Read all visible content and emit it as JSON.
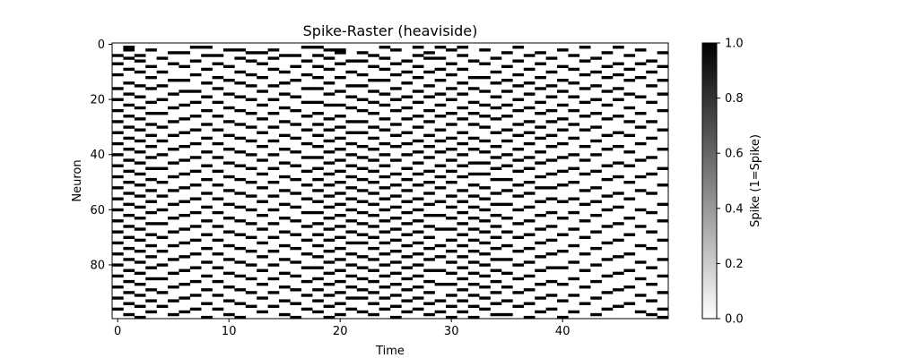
{
  "chart_data": {
    "type": "heatmap",
    "title": "Spike-Raster (heaviside)",
    "xlabel": "Time",
    "ylabel": "Neuron",
    "xlim": [
      -0.5,
      49.5
    ],
    "ylim": [
      99.5,
      -0.5
    ],
    "x_ticks": [
      0,
      10,
      20,
      30,
      40
    ],
    "y_ticks": [
      0,
      20,
      40,
      60,
      80
    ],
    "n_neurons": 100,
    "n_time": 50,
    "colormap": "gray_r",
    "colorbar": {
      "label": "Spike (1=Spike)",
      "range": [
        0,
        1
      ],
      "ticks": [
        "0.0",
        "0.2",
        "0.4",
        "0.6",
        "0.8",
        "1.0"
      ]
    },
    "spike_rows": [
      [],
      [
        1,
        7,
        8,
        17,
        18,
        24,
        27,
        29,
        31,
        36,
        42,
        45
      ],
      [
        1,
        3,
        10,
        11,
        14,
        19,
        20,
        25,
        30,
        33,
        40,
        47
      ],
      [
        5,
        6,
        12,
        13,
        20,
        22,
        28,
        35,
        38,
        44,
        49
      ],
      [
        0,
        2,
        8,
        9,
        15,
        16,
        18,
        23,
        27,
        31,
        37,
        41,
        46
      ],
      [
        1,
        4,
        11,
        14,
        19,
        24,
        28,
        29,
        34,
        39,
        43
      ],
      [
        2,
        7,
        12,
        17,
        21,
        22,
        26,
        32,
        36,
        42,
        48
      ],
      [
        0,
        5,
        9,
        13,
        20,
        25,
        30,
        33,
        38,
        45,
        47
      ],
      [
        3,
        6,
        10,
        16,
        18,
        23,
        27,
        35,
        40,
        44,
        49
      ],
      [
        1,
        8,
        14,
        19,
        24,
        29,
        31,
        37,
        41,
        46
      ],
      [
        2,
        4,
        11,
        15,
        21,
        26,
        28,
        34,
        39,
        43,
        48
      ],
      [
        0,
        7,
        12,
        17,
        22,
        25,
        30,
        36,
        42,
        45
      ],
      [
        3,
        9,
        13,
        18,
        20,
        27,
        32,
        33,
        38,
        44,
        47
      ],
      [
        5,
        6,
        10,
        16,
        23,
        24,
        29,
        35,
        40,
        46,
        49
      ],
      [
        1,
        8,
        11,
        15,
        19,
        26,
        31,
        34,
        37,
        41
      ],
      [
        2,
        4,
        12,
        14,
        21,
        22,
        28,
        36,
        39,
        43,
        48
      ],
      [
        0,
        3,
        9,
        17,
        18,
        25,
        30,
        32,
        38,
        42,
        45
      ],
      [
        6,
        7,
        13,
        20,
        23,
        27,
        33,
        35,
        40,
        44
      ],
      [
        1,
        5,
        10,
        15,
        19,
        24,
        29,
        31,
        37,
        46,
        49
      ],
      [
        2,
        8,
        11,
        16,
        21,
        26,
        28,
        34,
        39,
        41,
        47
      ],
      [
        0,
        4,
        12,
        14,
        22,
        25,
        30,
        36,
        43,
        45
      ],
      [
        3,
        7,
        9,
        17,
        18,
        23,
        27,
        32,
        38,
        42,
        48
      ],
      [
        1,
        6,
        13,
        19,
        20,
        24,
        29,
        33,
        35,
        40,
        44
      ],
      [
        2,
        5,
        10,
        15,
        21,
        26,
        31,
        34,
        37,
        46
      ],
      [
        0,
        8,
        11,
        16,
        22,
        25,
        28,
        36,
        39,
        41,
        49
      ],
      [
        3,
        4,
        12,
        14,
        18,
        23,
        30,
        32,
        38,
        43,
        47
      ],
      [
        1,
        7,
        9,
        17,
        20,
        27,
        29,
        33,
        35,
        42,
        45
      ],
      [
        2,
        6,
        13,
        19,
        24,
        26,
        31,
        34,
        40,
        44
      ],
      [
        0,
        5,
        10,
        15,
        21,
        22,
        28,
        37,
        39,
        46,
        48
      ],
      [
        3,
        8,
        11,
        16,
        18,
        25,
        30,
        32,
        36,
        41
      ],
      [
        1,
        4,
        12,
        14,
        20,
        23,
        27,
        33,
        38,
        43,
        47
      ],
      [
        2,
        7,
        9,
        17,
        19,
        24,
        29,
        35,
        40,
        42,
        49
      ],
      [
        0,
        6,
        13,
        21,
        22,
        26,
        31,
        34,
        37,
        45
      ],
      [
        3,
        5,
        10,
        15,
        18,
        25,
        28,
        36,
        39,
        44,
        46
      ],
      [
        1,
        8,
        11,
        16,
        20,
        23,
        30,
        32,
        38,
        41,
        48
      ],
      [
        2,
        4,
        12,
        14,
        19,
        27,
        29,
        33,
        35,
        43
      ],
      [
        0,
        7,
        9,
        17,
        21,
        24,
        26,
        31,
        37,
        40,
        47
      ],
      [
        3,
        6,
        13,
        18,
        22,
        25,
        28,
        34,
        39,
        42,
        45
      ],
      [
        1,
        5,
        10,
        15,
        20,
        23,
        30,
        32,
        36,
        44,
        49
      ],
      [
        2,
        8,
        11,
        16,
        19,
        27,
        29,
        33,
        38,
        46
      ],
      [
        0,
        4,
        12,
        14,
        21,
        24,
        26,
        31,
        35,
        41,
        43
      ],
      [
        3,
        7,
        9,
        17,
        18,
        22,
        28,
        34,
        37,
        40,
        48
      ],
      [
        1,
        6,
        13,
        20,
        23,
        25,
        30,
        36,
        39,
        42,
        47
      ],
      [
        2,
        5,
        10,
        15,
        19,
        27,
        32,
        33,
        38,
        45
      ],
      [
        0,
        8,
        11,
        16,
        21,
        24,
        29,
        31,
        35,
        44,
        46
      ],
      [
        3,
        4,
        12,
        14,
        18,
        22,
        26,
        34,
        37,
        41,
        49
      ],
      [
        1,
        7,
        9,
        17,
        20,
        23,
        28,
        30,
        36,
        40,
        43
      ],
      [
        2,
        6,
        13,
        19,
        25,
        27,
        32,
        33,
        39,
        42,
        48
      ],
      [
        0,
        5,
        10,
        15,
        21,
        24,
        29,
        31,
        38,
        45,
        47
      ],
      [
        3,
        8,
        11,
        16,
        18,
        22,
        26,
        34,
        35,
        44
      ],
      [
        1,
        4,
        12,
        14,
        20,
        23,
        28,
        30,
        37,
        41,
        46
      ],
      [
        2,
        7,
        9,
        17,
        19,
        25,
        27,
        32,
        36,
        40,
        49
      ],
      [
        0,
        6,
        13,
        21,
        24,
        29,
        33,
        38,
        39,
        43
      ],
      [
        3,
        5,
        10,
        15,
        18,
        22,
        26,
        31,
        35,
        42,
        47
      ],
      [
        1,
        8,
        11,
        16,
        20,
        23,
        28,
        34,
        37,
        45,
        48
      ],
      [
        2,
        4,
        12,
        14,
        19,
        25,
        30,
        32,
        36,
        44
      ],
      [
        0,
        7,
        9,
        17,
        21,
        24,
        27,
        33,
        39,
        41,
        46
      ],
      [
        3,
        6,
        13,
        18,
        22,
        26,
        29,
        31,
        38,
        40,
        43
      ],
      [
        1,
        5,
        10,
        15,
        20,
        23,
        28,
        34,
        35,
        42,
        49
      ],
      [
        2,
        8,
        11,
        16,
        19,
        25,
        30,
        32,
        37,
        45
      ],
      [
        0,
        4,
        12,
        14,
        21,
        24,
        27,
        33,
        36,
        44,
        47
      ],
      [
        3,
        7,
        9,
        17,
        18,
        22,
        26,
        31,
        39,
        41,
        48
      ],
      [
        1,
        6,
        13,
        20,
        23,
        28,
        29,
        34,
        38,
        43
      ],
      [
        2,
        5,
        10,
        15,
        19,
        25,
        30,
        32,
        35,
        40,
        46
      ],
      [
        0,
        8,
        11,
        16,
        21,
        24,
        27,
        33,
        37,
        42,
        49
      ],
      [
        3,
        4,
        12,
        14,
        18,
        22,
        26,
        31,
        36,
        45
      ],
      [
        1,
        7,
        9,
        17,
        20,
        23,
        28,
        34,
        39,
        44,
        47
      ],
      [
        2,
        6,
        13,
        19,
        25,
        29,
        30,
        32,
        38,
        41
      ],
      [
        0,
        5,
        10,
        15,
        21,
        24,
        27,
        33,
        35,
        43,
        48
      ],
      [
        3,
        8,
        11,
        16,
        18,
        22,
        26,
        31,
        37,
        40,
        46
      ],
      [
        1,
        4,
        12,
        14,
        20,
        23,
        28,
        34,
        36,
        42
      ],
      [
        2,
        7,
        9,
        17,
        19,
        25,
        30,
        32,
        39,
        45,
        49
      ],
      [
        0,
        6,
        13,
        21,
        22,
        24,
        27,
        33,
        38,
        44
      ],
      [
        3,
        5,
        10,
        15,
        18,
        26,
        29,
        31,
        35,
        41,
        47
      ],
      [
        1,
        8,
        11,
        16,
        20,
        23,
        28,
        34,
        37,
        43,
        48
      ],
      [
        2,
        4,
        12,
        14,
        19,
        25,
        30,
        32,
        36,
        40
      ],
      [
        0,
        7,
        9,
        17,
        21,
        24,
        27,
        33,
        39,
        42,
        46
      ],
      [
        3,
        6,
        13,
        18,
        22,
        26,
        29,
        31,
        38,
        45
      ],
      [
        1,
        5,
        10,
        15,
        20,
        23,
        28,
        34,
        35,
        44,
        49
      ],
      [
        2,
        8,
        11,
        16,
        19,
        25,
        30,
        32,
        37,
        41,
        47
      ],
      [
        0,
        4,
        12,
        14,
        21,
        24,
        27,
        33,
        36,
        43
      ],
      [
        3,
        7,
        9,
        17,
        18,
        22,
        26,
        31,
        39,
        40,
        48
      ],
      [
        1,
        6,
        13,
        20,
        23,
        28,
        29,
        34,
        38,
        42,
        46
      ],
      [
        2,
        5,
        10,
        15,
        19,
        25,
        30,
        32,
        35,
        45
      ],
      [
        0,
        8,
        11,
        16,
        21,
        24,
        27,
        33,
        37,
        44,
        49
      ],
      [
        3,
        4,
        12,
        14,
        18,
        22,
        26,
        31,
        36,
        41,
        47
      ],
      [
        1,
        7,
        9,
        17,
        20,
        23,
        28,
        34,
        39,
        43
      ],
      [
        2,
        6,
        13,
        19,
        25,
        29,
        30,
        32,
        38,
        40,
        48
      ],
      [
        0,
        5,
        10,
        15,
        21,
        24,
        27,
        33,
        35,
        42,
        46
      ],
      [
        3,
        8,
        11,
        16,
        18,
        22,
        26,
        31,
        37,
        45
      ],
      [
        1,
        4,
        12,
        14,
        20,
        23,
        28,
        34,
        36,
        44,
        49
      ],
      [
        2,
        7,
        9,
        17,
        19,
        25,
        30,
        32,
        39,
        41,
        47
      ],
      [
        0,
        6,
        13,
        21,
        22,
        24,
        27,
        33,
        38,
        43
      ],
      [
        3,
        5,
        10,
        15,
        18,
        26,
        29,
        31,
        35,
        40,
        48
      ],
      [
        1,
        8,
        11,
        16,
        20,
        23,
        28,
        34,
        37,
        42,
        46
      ],
      [
        2,
        4,
        12,
        14,
        19,
        25,
        30,
        32,
        36,
        45
      ],
      [
        0,
        7,
        9,
        17,
        21,
        24,
        27,
        33,
        39,
        44,
        49
      ],
      [
        3,
        6,
        13,
        18,
        22,
        26,
        29,
        31,
        38,
        41,
        47
      ],
      [
        1,
        5,
        10,
        15,
        20,
        23,
        28,
        34,
        35,
        43,
        48
      ],
      [
        2,
        8,
        11,
        16,
        19,
        25,
        30,
        32,
        37,
        40,
        49
      ]
    ]
  }
}
